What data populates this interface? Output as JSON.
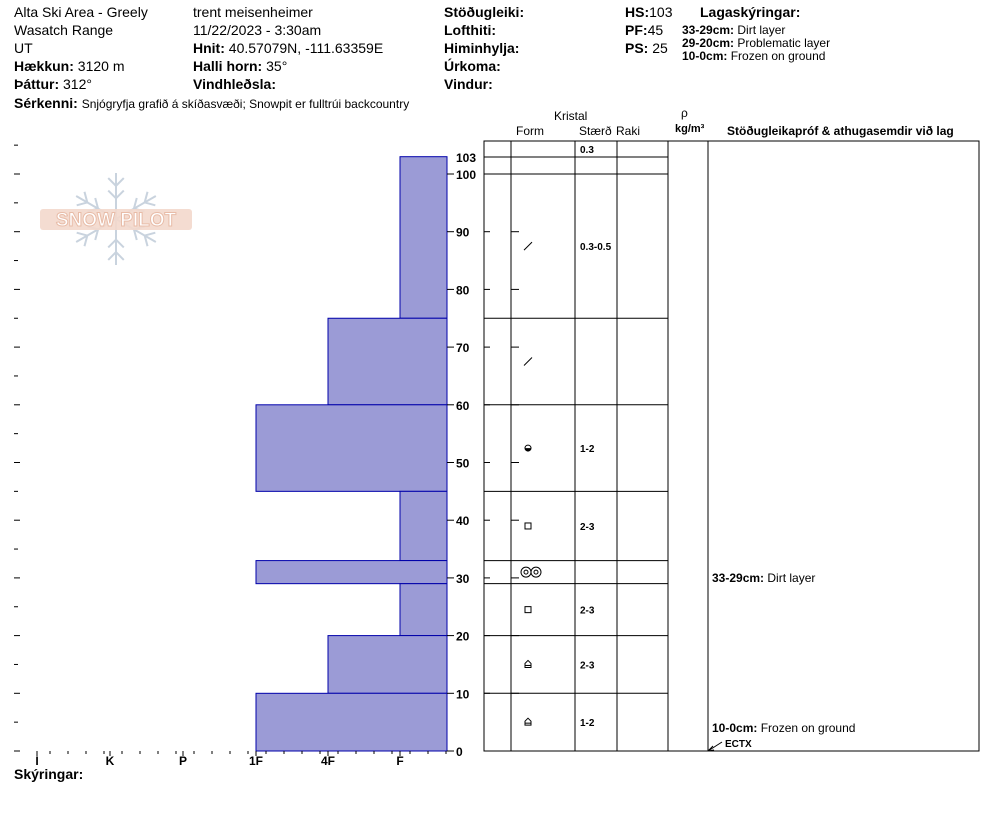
{
  "header": {
    "location": "Alta Ski Area - Greely",
    "range": "Wasatch Range",
    "state": "UT",
    "elevation_label": "Hækkun:",
    "elevation": "3120 m",
    "aspect_label": "Þáttur:",
    "aspect": "312°",
    "observer": "trent meisenheimer",
    "datetime": "11/22/2023 - 3:30am",
    "coords_label": "Hnit:",
    "coords": "40.57079N, -111.63359E",
    "slope_label": "Halli horn:",
    "slope": "35°",
    "wind_loading_label": "Vindhleðsla:",
    "stability_label": "Stöðugleiki:",
    "air_temp_label": "Lofthiti:",
    "sky_label": "Himinhylja:",
    "precip_label": "Úrkoma:",
    "wind_label": "Vindur:",
    "hs_label": "HS:",
    "hs": "103",
    "pf_label": "PF:",
    "pf": "45",
    "ps_label": "PS:",
    "ps": "25",
    "layer_notes_label": "Lagaskýringar:",
    "layer_notes": [
      {
        "range": "33-29cm:",
        "text": "Dirt layer"
      },
      {
        "range": "29-20cm:",
        "text": "Problematic layer"
      },
      {
        "range": "10-0cm:",
        "text": "Frozen on ground"
      }
    ],
    "features_label": "Sérkenni:",
    "features": "Snjógryfja grafið á skíðasvæði;  Snowpit er fulltrúi backcountry"
  },
  "columns": {
    "crystal": "Kristal",
    "form": "Form",
    "size": "Stærð",
    "moisture": "Raki",
    "rho": "ρ",
    "density_unit": "kg/m³",
    "stability_tests": "Stöðugleikapróf & athugasemdir við lag"
  },
  "legend_label": "Skýringar:",
  "logo_text": "SNOW PILOT",
  "colors": {
    "hardness_fill": "#9b9bd6",
    "hardness_stroke": "#0000aa"
  },
  "chart_data": {
    "type": "bar",
    "orientation": "horizontal",
    "x_categories": [
      "I",
      "K",
      "P",
      "1F",
      "4F",
      "F"
    ],
    "y_ticks": [
      0,
      10,
      20,
      30,
      40,
      50,
      60,
      70,
      80,
      90,
      100
    ],
    "y_top_label": "103",
    "ylim": [
      0,
      103
    ],
    "hardness_layers": [
      {
        "top": 103,
        "bottom": 75,
        "hardness": "F"
      },
      {
        "top": 75,
        "bottom": 60,
        "hardness": "4F"
      },
      {
        "top": 60,
        "bottom": 45,
        "hardness": "1F"
      },
      {
        "top": 45,
        "bottom": 33,
        "hardness": "F"
      },
      {
        "top": 33,
        "bottom": 29,
        "hardness": "1F"
      },
      {
        "top": 29,
        "bottom": 20,
        "hardness": "F"
      },
      {
        "top": 20,
        "bottom": 10,
        "hardness": "4F"
      },
      {
        "top": 10,
        "bottom": 0,
        "hardness": "1F"
      }
    ],
    "layer_boundaries": [
      103,
      100,
      75,
      60,
      45,
      33,
      29,
      20,
      10,
      0
    ],
    "crystal_rows": [
      {
        "top": 103,
        "bottom": 100,
        "form": "",
        "size": "0.3"
      },
      {
        "top": 100,
        "bottom": 75,
        "form": "slash",
        "size": "0.3-0.5"
      },
      {
        "top": 75,
        "bottom": 60,
        "form": "slash",
        "size": ""
      },
      {
        "top": 60,
        "bottom": 45,
        "form": "round-half",
        "size": "1-2"
      },
      {
        "top": 45,
        "bottom": 33,
        "form": "square",
        "size": "2-3"
      },
      {
        "top": 33,
        "bottom": 29,
        "form": "double-ring",
        "size": ""
      },
      {
        "top": 29,
        "bottom": 20,
        "form": "square",
        "size": "2-3"
      },
      {
        "top": 20,
        "bottom": 10,
        "form": "depth-hoar",
        "size": "2-3"
      },
      {
        "top": 10,
        "bottom": 0,
        "form": "depth-hoar",
        "size": "1-2"
      }
    ],
    "comments": [
      {
        "depth": 31,
        "label": "33-29cm:",
        "text": "Dirt layer"
      },
      {
        "depth": 4,
        "label": "10-0cm:",
        "text": "Frozen on ground"
      }
    ],
    "test": {
      "depth": 0,
      "label": "ECTX"
    }
  }
}
